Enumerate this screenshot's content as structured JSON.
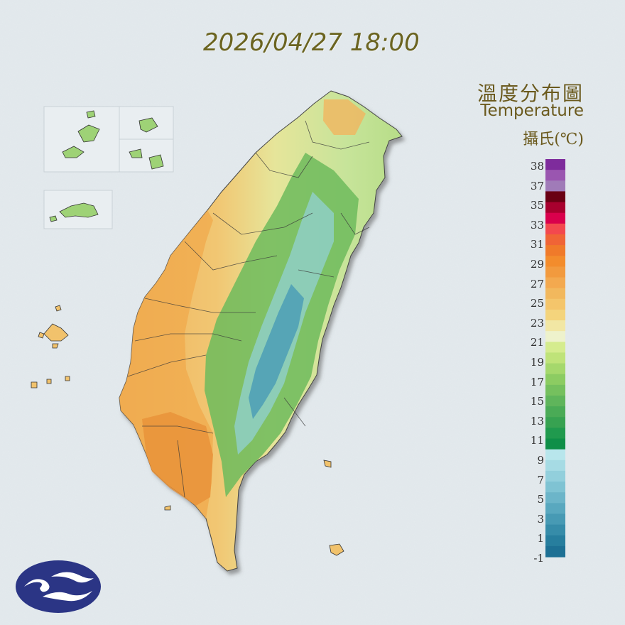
{
  "timestamp": "2026/04/27 18:00",
  "title_zh": "溫度分布圖",
  "title_en": "Temperature",
  "unit": "攝氏(℃)",
  "scale": {
    "labels": [
      "38",
      "37",
      "35",
      "33",
      "31",
      "29",
      "27",
      "25",
      "23",
      "21",
      "19",
      "17",
      "15",
      "13",
      "11",
      "9",
      "7",
      "5",
      "3",
      "1",
      "-1"
    ],
    "colors": [
      "#7e2c9c",
      "#9a56b0",
      "#a07bb8",
      "#6a0013",
      "#a8002e",
      "#d9004c",
      "#f3484e",
      "#f06436",
      "#f07a2a",
      "#f38c2c",
      "#f29a3e",
      "#f3a94f",
      "#f2b85d",
      "#f4c56b",
      "#f4d47c",
      "#f2e7a4",
      "#eef2cc",
      "#d5ec8e",
      "#bfe379",
      "#a5d86c",
      "#8ccc62",
      "#75c05e",
      "#5fb55b",
      "#4aab56",
      "#37a251",
      "#209a4e",
      "#0f8f48",
      "#b8e6ec",
      "#a6dbe4",
      "#92cfdc",
      "#7fc3d3",
      "#6cb5c9",
      "#59a8bf",
      "#479ab4",
      "#368ca9",
      "#277e9e",
      "#1d7094"
    ]
  },
  "colors": {
    "background": "#dfe6ea",
    "text_accent": "#6b6420",
    "logo": "#2b3585"
  },
  "icons": {
    "logo": "cwa-logo-icon"
  }
}
